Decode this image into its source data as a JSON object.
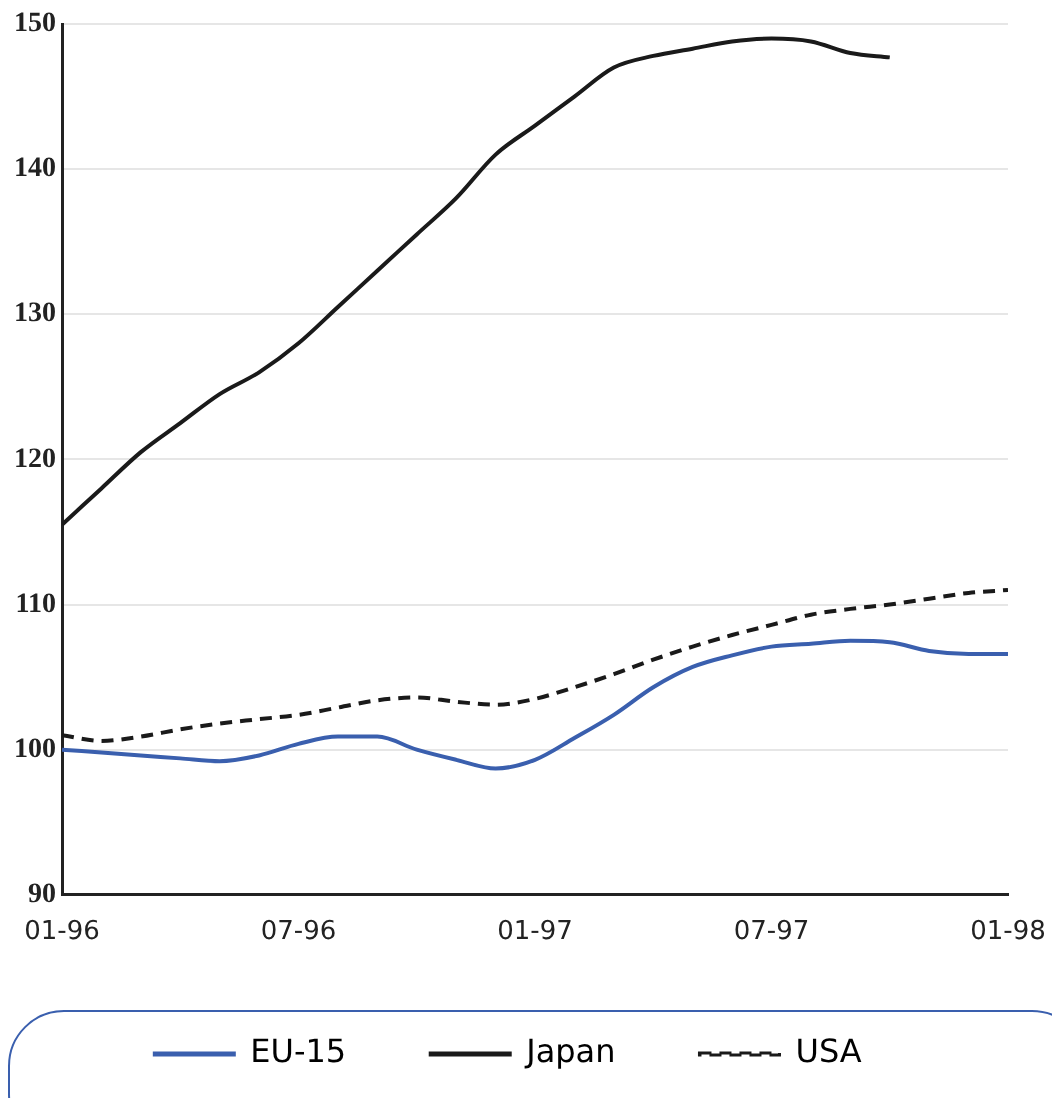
{
  "chart_data": {
    "type": "line",
    "x": [
      "1996-01",
      "1996-02",
      "1996-03",
      "1996-04",
      "1996-05",
      "1996-06",
      "1996-07",
      "1996-08",
      "1996-09",
      "1996-10",
      "1996-11",
      "1996-12",
      "1997-01",
      "1997-02",
      "1997-03",
      "1997-04",
      "1997-05",
      "1997-06",
      "1997-07",
      "1997-08",
      "1997-09",
      "1997-10",
      "1997-11",
      "1997-12",
      "1998-01"
    ],
    "series": [
      {
        "name": "EU-15",
        "color": "#3a5fae",
        "line_style": "solid",
        "values": [
          100,
          99.8,
          99.6,
          99.4,
          99.2,
          99.6,
          100.4,
          100.9,
          100.9,
          100,
          99.3,
          98.7,
          99.3,
          100.8,
          102.4,
          104.3,
          105.7,
          106.5,
          107.1,
          107.3,
          107.5,
          107.4,
          106.8,
          106.6,
          106.6
        ]
      },
      {
        "name": "Japan",
        "color": "#1a1a1a",
        "line_style": "solid",
        "values": [
          115.5,
          118,
          120.5,
          122.5,
          124.5,
          126,
          128,
          130.5,
          133,
          135.5,
          138,
          141,
          143,
          145,
          147,
          147.8,
          148.3,
          148.8,
          149,
          148.8,
          148,
          147.7,
          null,
          null,
          null
        ]
      },
      {
        "name": "USA",
        "color": "#1a1a1a",
        "line_style": "dashed",
        "values": [
          101,
          100.6,
          100.9,
          101.4,
          101.8,
          102.1,
          102.4,
          102.9,
          103.4,
          103.6,
          103.3,
          103.1,
          103.5,
          104.3,
          105.2,
          106.2,
          107.1,
          107.9,
          108.6,
          109.3,
          109.7,
          110,
          110.4,
          110.8,
          111
        ]
      }
    ],
    "xlim": [
      "1996-01",
      "1998-01"
    ],
    "xticks": [
      {
        "value": "1996-01",
        "label": "01-96"
      },
      {
        "value": "1996-07",
        "label": "07-96"
      },
      {
        "value": "1997-01",
        "label": "01-97"
      },
      {
        "value": "1997-07",
        "label": "07-97"
      },
      {
        "value": "1998-01",
        "label": "01-98"
      }
    ],
    "ylim": [
      90,
      150
    ],
    "yticks": [
      90,
      100,
      110,
      120,
      130,
      140,
      150
    ],
    "grid": "y",
    "legend": "bottom",
    "marker": "none"
  }
}
